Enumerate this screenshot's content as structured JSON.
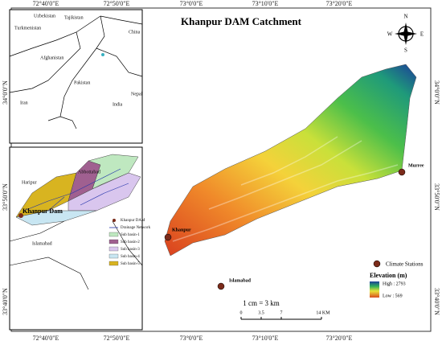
{
  "title": "Khanpur DAM Catchment",
  "top_axis": [
    "72°40'0\"E",
    "72°50'0\"E",
    "73°0'0\"E",
    "73°10'0\"E",
    "73°20'0\"E"
  ],
  "bottom_axis": [
    "72°40'0\"E",
    "72°50'0\"E",
    "73°0'0\"E",
    "73°10'0\"E",
    "73°20'0\"E"
  ],
  "left_axis": [
    "34°0'0\"N",
    "33°50'0\"N",
    "33°40'0\"N"
  ],
  "right_axis": [
    "34°0'0\"N",
    "33°50'0\"N",
    "33°40'0\"N"
  ],
  "compass": {
    "n": "N",
    "s": "S",
    "e": "E",
    "w": "W"
  },
  "inset_country": {
    "labels": [
      "Uzbekistan",
      "Tajikistan",
      "Turkmenistan",
      "China",
      "Afghanistan",
      "Pakistan",
      "Nepal",
      "Iran",
      "India"
    ]
  },
  "inset_basin": {
    "labels": [
      "Haripur",
      "Abbottabad",
      "Khanpur Dam",
      "Islamabad"
    ],
    "legend": [
      "Khanpur DAM",
      "Drainage Network",
      "Sub basin-1",
      "Sub basin-2",
      "Sub basin-3",
      "Sub basin-4",
      "Sub basin-5"
    ]
  },
  "map": {
    "places": [
      "Murree",
      "Khanpur",
      "Islamabad"
    ],
    "station_legend": "Climate Stations",
    "elevation_title": "Elevation (m)",
    "elevation_high": "High : 2793",
    "elevation_low": "Low : 569",
    "scale_text": "1 cm = 3 km",
    "scale_labels": [
      "0",
      "3.5",
      "7",
      "14 KM"
    ]
  }
}
